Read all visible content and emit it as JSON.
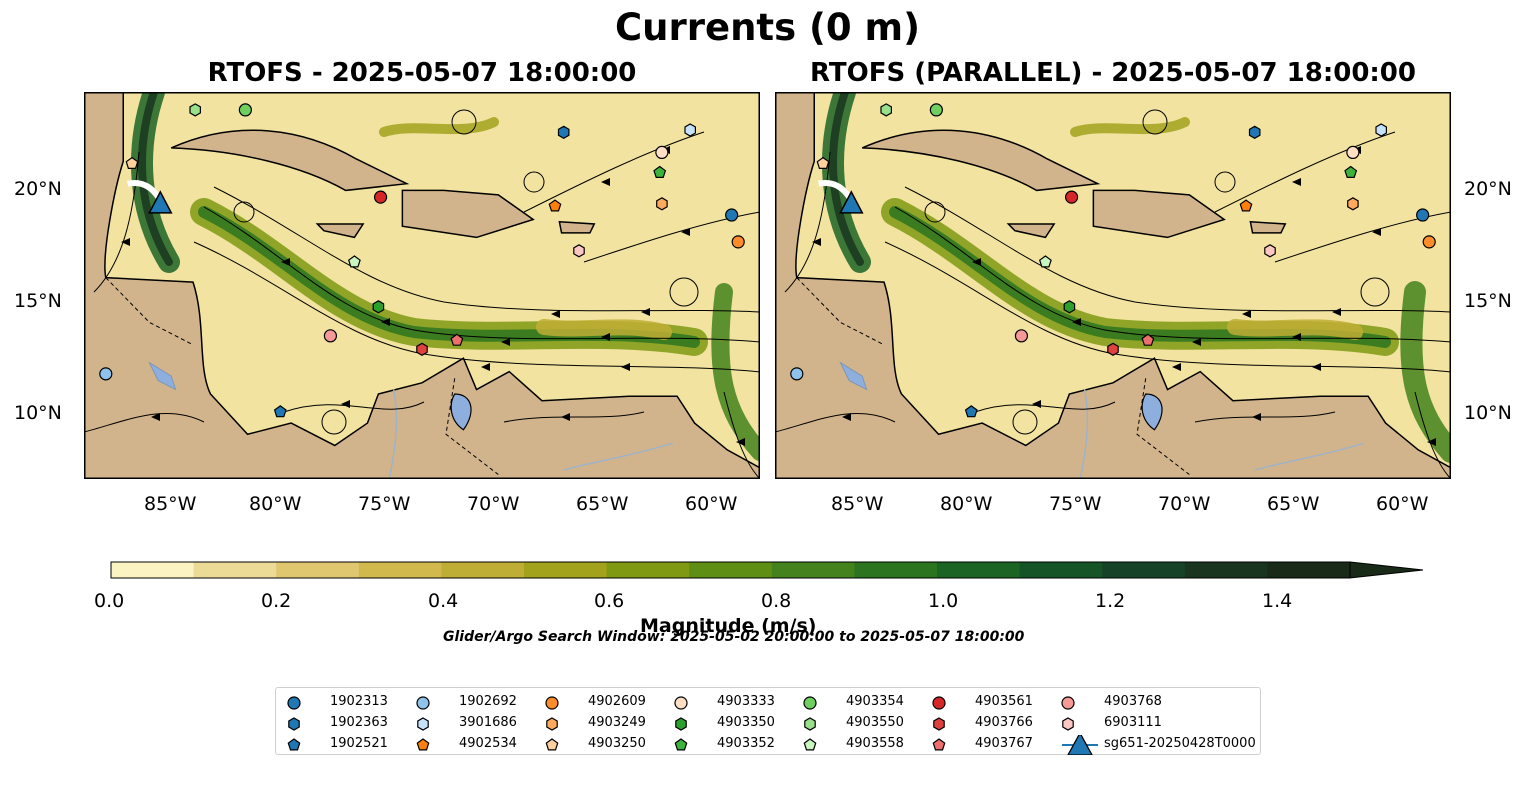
{
  "figure": {
    "title": "Currents (0 m)",
    "panels": [
      {
        "title": "RTOFS - 2025-05-07 18:00:00"
      },
      {
        "title": "RTOFS (PARALLEL) - 2025-05-07 18:00:00"
      }
    ],
    "lon_ticks": [
      "85°W",
      "80°W",
      "75°W",
      "70°W",
      "65°W",
      "60°W"
    ],
    "lat_ticks": [
      "20°N",
      "15°N",
      "10°N"
    ],
    "extent": {
      "lon": [
        -89,
        -58
      ],
      "lat": [
        7,
        24.3
      ]
    },
    "colors": {
      "land": "#d2b48c",
      "water_bodies": "#8eafdd",
      "rivers": "#9fb3c8"
    }
  },
  "colorbar": {
    "label": "Magnitude (m/s)",
    "ticks": [
      "0.0",
      "0.2",
      "0.4",
      "0.6",
      "0.8",
      "1.0",
      "1.2",
      "1.4"
    ],
    "range": [
      0,
      1.5
    ],
    "extend": "max",
    "colors": [
      "#fbf3c2",
      "#ecda97",
      "#dfc770",
      "#d2b94e",
      "#bfae35",
      "#a2a21d",
      "#7f9a12",
      "#5f8e14",
      "#43821c",
      "#2d7420",
      "#1c6424",
      "#155427",
      "#164327",
      "#19351f",
      "#192a18"
    ]
  },
  "search_window": "Glider/Argo Search Window: 2025-05-02 20:00:00 to 2025-05-07 18:00:00",
  "legend": {
    "entries": [
      {
        "label": "1902313",
        "marker": "circle",
        "color": "#1f77b4"
      },
      {
        "label": "1902363",
        "marker": "hexagon",
        "color": "#1f77b4"
      },
      {
        "label": "1902521",
        "marker": "pentagon",
        "color": "#1f77b4"
      },
      {
        "label": "1902692",
        "marker": "circle",
        "color": "#8fc3ec"
      },
      {
        "label": "3901686",
        "marker": "hexagon",
        "color": "#c6e2fa"
      },
      {
        "label": "4902534",
        "marker": "pentagon",
        "color": "#ff7f0e"
      },
      {
        "label": "4902609",
        "marker": "circle",
        "color": "#ff8c2b"
      },
      {
        "label": "4903249",
        "marker": "hexagon",
        "color": "#ffa95e"
      },
      {
        "label": "4903250",
        "marker": "pentagon",
        "color": "#ffcf9d"
      },
      {
        "label": "4903333",
        "marker": "circle",
        "color": "#ffe0c4"
      },
      {
        "label": "4903350",
        "marker": "hexagon",
        "color": "#2ca02c"
      },
      {
        "label": "4903352",
        "marker": "pentagon",
        "color": "#3cb43c"
      },
      {
        "label": "4903354",
        "marker": "circle",
        "color": "#6fcf5f"
      },
      {
        "label": "4903550",
        "marker": "hexagon",
        "color": "#98e08a"
      },
      {
        "label": "4903558",
        "marker": "pentagon",
        "color": "#c9f5c0"
      },
      {
        "label": "4903561",
        "marker": "circle",
        "color": "#d62728"
      },
      {
        "label": "4903766",
        "marker": "hexagon",
        "color": "#e0403e"
      },
      {
        "label": "4903767",
        "marker": "pentagon",
        "color": "#ef6f6f"
      },
      {
        "label": "4903768",
        "marker": "circle",
        "color": "#f59a96"
      },
      {
        "label": "6903111",
        "marker": "hexagon",
        "color": "#fcc6c2"
      },
      {
        "label": "sg651-20250428T0000",
        "marker": "triangle",
        "color": "#1f77b4"
      }
    ]
  },
  "floats": [
    {
      "id": "1902313",
      "lon": -59.3,
      "lat": 18.8
    },
    {
      "id": "1902363",
      "lon": -67.0,
      "lat": 22.5
    },
    {
      "id": "1902521",
      "lon": -80.0,
      "lat": 10.0
    },
    {
      "id": "1902692",
      "lon": -88.0,
      "lat": 11.7
    },
    {
      "id": "3901686",
      "lon": -61.2,
      "lat": 22.6
    },
    {
      "id": "4902534",
      "lon": -67.4,
      "lat": 19.2
    },
    {
      "id": "4902609",
      "lon": -59.0,
      "lat": 17.6
    },
    {
      "id": "4903249",
      "lon": -62.5,
      "lat": 19.3
    },
    {
      "id": "4903250",
      "lon": -86.8,
      "lat": 21.1
    },
    {
      "id": "4903333",
      "lon": -62.5,
      "lat": 21.6
    },
    {
      "id": "4903350",
      "lon": -75.5,
      "lat": 14.7
    },
    {
      "id": "4903352",
      "lon": -62.6,
      "lat": 20.7
    },
    {
      "id": "4903354",
      "lon": -81.6,
      "lat": 23.5
    },
    {
      "id": "4903550",
      "lon": -83.9,
      "lat": 23.5
    },
    {
      "id": "4903558",
      "lon": -76.6,
      "lat": 16.7
    },
    {
      "id": "4903561",
      "lon": -75.4,
      "lat": 19.6
    },
    {
      "id": "4903766",
      "lon": -73.5,
      "lat": 12.8
    },
    {
      "id": "4903767",
      "lon": -71.9,
      "lat": 13.2
    },
    {
      "id": "4903768",
      "lon": -77.7,
      "lat": 13.4
    },
    {
      "id": "6903111",
      "lon": -66.3,
      "lat": 17.2
    }
  ],
  "glider": {
    "id": "sg651-20250428T0000",
    "lon": -85.5,
    "lat": 19.3
  }
}
